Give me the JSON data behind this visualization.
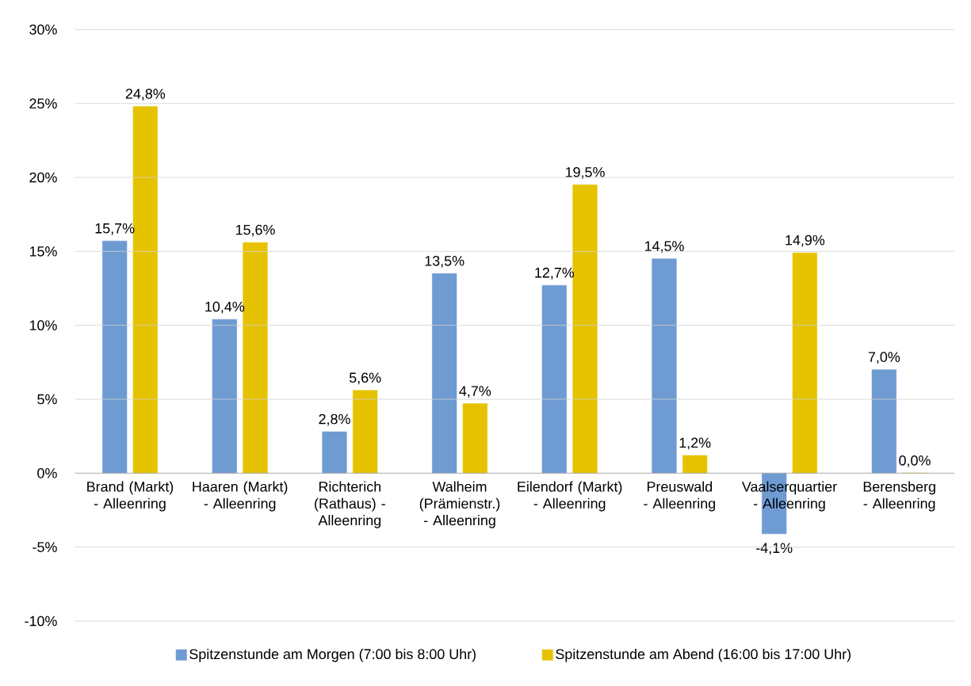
{
  "chart_data": {
    "type": "bar",
    "categories": [
      "Brand (Markt) - Alleenring",
      "Haaren (Markt) - Alleenring",
      "Richterich (Rathaus) - Alleenring",
      "Walheim (Prämienstr.) - Alleenring",
      "Eilendorf (Markt) - Alleenring",
      "Preuswald - Alleenring",
      "Vaalserquartier - Alleenring",
      "Berensberg - Alleenring"
    ],
    "series": [
      {
        "name": "Spitzenstunde am Morgen (7:00 bis 8:00 Uhr)",
        "color": "#6f9bd3",
        "values": [
          15.7,
          10.4,
          2.8,
          13.5,
          12.7,
          14.5,
          -4.1,
          7.0
        ],
        "value_labels": [
          "15,7%",
          "10,4%",
          "2,8%",
          "13,5%",
          "12,7%",
          "14,5%",
          "-4,1%",
          "7,0%"
        ]
      },
      {
        "name": "Spitzenstunde am Abend (16:00 bis 17:00 Uhr)",
        "color": "#e6c300",
        "values": [
          24.8,
          15.6,
          5.6,
          4.7,
          19.5,
          1.2,
          14.9,
          0.0
        ],
        "value_labels": [
          "24,8%",
          "15,6%",
          "5,6%",
          "4,7%",
          "19,5%",
          "1,2%",
          "14,9%",
          "0,0%"
        ]
      }
    ],
    "ylim": [
      -10,
      30
    ],
    "yticks": [
      {
        "value": -10,
        "label": "-10%"
      },
      {
        "value": -5,
        "label": "-5%"
      },
      {
        "value": 0,
        "label": "0%"
      },
      {
        "value": 5,
        "label": "5%"
      },
      {
        "value": 10,
        "label": "10%"
      },
      {
        "value": 15,
        "label": "15%"
      },
      {
        "value": 20,
        "label": "20%"
      },
      {
        "value": 25,
        "label": "25%"
      },
      {
        "value": 30,
        "label": "30%"
      }
    ],
    "grid": "y",
    "legend": "bottom"
  }
}
